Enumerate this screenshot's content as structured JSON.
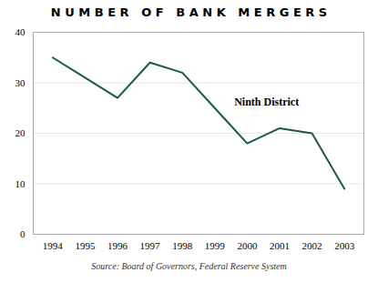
{
  "chart_data": {
    "type": "line",
    "title": "N U M B E R   O F   B A N K   M E R G E R S",
    "x": [
      1994,
      1995,
      1996,
      1997,
      1998,
      1999,
      2000,
      2001,
      2002,
      2003
    ],
    "values": [
      35,
      31,
      27,
      34,
      32,
      25,
      18,
      21,
      20,
      9
    ],
    "color": "#1a5c3a",
    "xlim": [
      1993.4,
      2003.6
    ],
    "xticks": [
      1994,
      1995,
      1996,
      1997,
      1998,
      1999,
      2000,
      2001,
      2002,
      2003
    ],
    "ylim": [
      0,
      40
    ],
    "yticks": [
      0,
      10,
      20,
      30,
      40
    ],
    "grid": true,
    "annotations": [
      {
        "text": "Ninth District",
        "x": 1999.6,
        "y": 25.5
      }
    ],
    "source": "Source: Board of Governors, Federal Reserve System"
  }
}
